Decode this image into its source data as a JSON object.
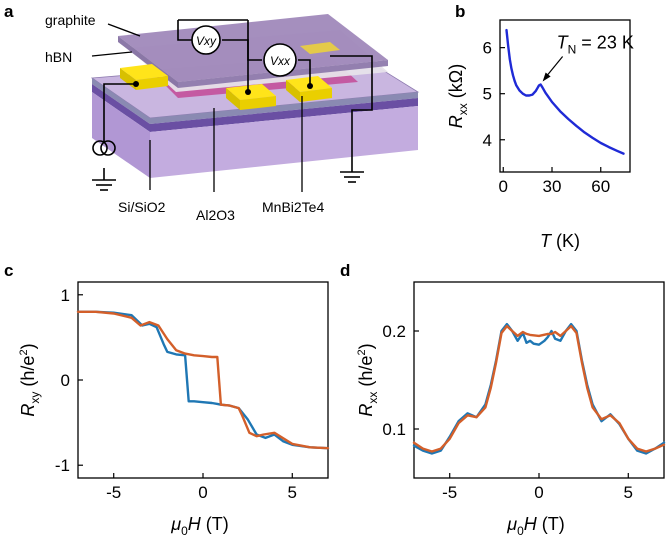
{
  "panels": {
    "a": {
      "label": "a",
      "labels": {
        "graphite": "graphite",
        "hbn": "hBN",
        "vxy": "Vxy",
        "vxx": "Vxx",
        "si_sio2": "Si/SiO2",
        "al2o3": "Al2O3",
        "mnbi2te4": "MnBi2Te4"
      },
      "colors": {
        "graphite": "#9d86b8",
        "hbn": "#e7e3ea",
        "sample": "#c45aa2",
        "contacts": "#ffe41a",
        "al2o3": "#8a8ab2",
        "sio2": "#6a4fa3",
        "substrate": "#b197d4"
      }
    },
    "b": {
      "label": "b"
    },
    "c": {
      "label": "c"
    },
    "d": {
      "label": "d"
    }
  },
  "chart_data": [
    {
      "id": "b",
      "type": "line",
      "xlabel_var": "T",
      "xlabel_unit": "(K)",
      "ylabel_var": "R",
      "ylabel_sub": "xx",
      "ylabel_unit": "(kΩ)",
      "xlim": [
        -2,
        78
      ],
      "ylim": [
        3.3,
        6.6
      ],
      "xticks": [
        0,
        30,
        60
      ],
      "yticks": [
        4,
        5,
        6
      ],
      "annotation": {
        "var": "T",
        "sub": "N",
        "rest": " = 23 K",
        "x": 23,
        "y": 5.2
      },
      "series": [
        {
          "name": "Rxx",
          "color": "#1f2ad6",
          "x": [
            2,
            3,
            4,
            5,
            6,
            7,
            8,
            10,
            12,
            14,
            16,
            18,
            20,
            21,
            22,
            23,
            24,
            26,
            28,
            30,
            35,
            40,
            45,
            50,
            55,
            60,
            65,
            70,
            74
          ],
          "y": [
            6.38,
            6.05,
            5.75,
            5.55,
            5.4,
            5.28,
            5.18,
            5.07,
            5.0,
            4.96,
            4.96,
            4.98,
            5.06,
            5.12,
            5.18,
            5.2,
            5.14,
            5.02,
            4.92,
            4.82,
            4.62,
            4.45,
            4.3,
            4.16,
            4.04,
            3.93,
            3.84,
            3.76,
            3.7
          ]
        }
      ]
    },
    {
      "id": "c",
      "type": "line",
      "xlabel_var": "μ",
      "xlabel_sub": "0",
      "xlabel_rest": "H",
      "xlabel_unit": "(T)",
      "ylabel_var": "R",
      "ylabel_sub": "xy",
      "ylabel_unit": "(h/e",
      "ylabel_sup": "2",
      "ylabel_close": ")",
      "xlim": [
        -7,
        7
      ],
      "ylim": [
        -1.15,
        1.15
      ],
      "xticks": [
        -5,
        0,
        5
      ],
      "yticks": [
        -1,
        0,
        1
      ],
      "series": [
        {
          "name": "sweep down",
          "color": "#1f77b4",
          "x": [
            -7,
            -6,
            -5,
            -4,
            -3.4,
            -3,
            -2.6,
            -2.2,
            -2,
            -1.5,
            -1.0,
            -0.8,
            -0.5,
            0,
            0.5,
            0.8,
            1.0,
            1.5,
            2,
            2.5,
            3,
            3.5,
            4,
            4.5,
            5,
            6,
            7
          ],
          "y": [
            0.8,
            0.8,
            0.79,
            0.76,
            0.64,
            0.66,
            0.62,
            0.42,
            0.33,
            0.3,
            0.29,
            -0.25,
            -0.25,
            -0.26,
            -0.27,
            -0.28,
            -0.29,
            -0.3,
            -0.33,
            -0.46,
            -0.64,
            -0.68,
            -0.64,
            -0.72,
            -0.76,
            -0.79,
            -0.8
          ]
        },
        {
          "name": "sweep up",
          "color": "#d35f2a",
          "x": [
            -7,
            -6,
            -5,
            -4,
            -3.5,
            -3,
            -2.5,
            -2,
            -1.5,
            -1.0,
            -0.5,
            0,
            0.5,
            0.8,
            1.0,
            1.5,
            2,
            2.2,
            2.6,
            3,
            3.4,
            4,
            5,
            6,
            7
          ],
          "y": [
            0.8,
            0.8,
            0.78,
            0.73,
            0.64,
            0.68,
            0.64,
            0.48,
            0.35,
            0.31,
            0.29,
            0.28,
            0.27,
            0.27,
            -0.29,
            -0.3,
            -0.33,
            -0.42,
            -0.62,
            -0.66,
            -0.64,
            -0.62,
            -0.75,
            -0.79,
            -0.8
          ]
        }
      ]
    },
    {
      "id": "d",
      "type": "line",
      "xlabel_var": "μ",
      "xlabel_sub": "0",
      "xlabel_rest": "H",
      "xlabel_unit": "(T)",
      "ylabel_var": "R",
      "ylabel_sub": "xx",
      "ylabel_unit": "(h/e",
      "ylabel_sup": "2",
      "ylabel_close": ")",
      "xlim": [
        -7,
        7
      ],
      "ylim": [
        0.05,
        0.25
      ],
      "xticks": [
        -5,
        0,
        5
      ],
      "yticks": [
        0.1,
        0.2
      ],
      "series": [
        {
          "name": "sweep down",
          "color": "#1f77b4",
          "x": [
            -7,
            -6.5,
            -6,
            -5.5,
            -5,
            -4.5,
            -4,
            -3.5,
            -3,
            -2.7,
            -2.4,
            -2.1,
            -1.8,
            -1.5,
            -1.2,
            -0.9,
            -0.7,
            -0.5,
            -0.3,
            0,
            0.3,
            0.5,
            0.7,
            0.9,
            1.2,
            1.5,
            1.8,
            2.1,
            2.4,
            2.7,
            3,
            3.5,
            4,
            4.5,
            5,
            5.5,
            6,
            6.5,
            7
          ],
          "y": [
            0.083,
            0.078,
            0.075,
            0.078,
            0.092,
            0.108,
            0.116,
            0.112,
            0.125,
            0.145,
            0.17,
            0.2,
            0.207,
            0.2,
            0.19,
            0.198,
            0.188,
            0.19,
            0.187,
            0.186,
            0.19,
            0.194,
            0.2,
            0.192,
            0.19,
            0.2,
            0.207,
            0.2,
            0.17,
            0.145,
            0.125,
            0.108,
            0.115,
            0.105,
            0.09,
            0.078,
            0.075,
            0.08,
            0.086
          ]
        },
        {
          "name": "sweep up",
          "color": "#d35f2a",
          "x": [
            -7,
            -6.5,
            -6,
            -5.5,
            -5,
            -4.5,
            -4,
            -3.5,
            -3,
            -2.7,
            -2.4,
            -2.1,
            -1.8,
            -1.5,
            -1.2,
            -0.9,
            -0.7,
            -0.5,
            0,
            0.5,
            0.7,
            0.9,
            1.2,
            1.5,
            1.8,
            2.1,
            2.4,
            2.7,
            3,
            3.5,
            4,
            4.5,
            5,
            5.5,
            6,
            6.5,
            7
          ],
          "y": [
            0.086,
            0.08,
            0.077,
            0.08,
            0.09,
            0.106,
            0.114,
            0.112,
            0.122,
            0.142,
            0.168,
            0.198,
            0.205,
            0.2,
            0.195,
            0.199,
            0.197,
            0.196,
            0.195,
            0.197,
            0.197,
            0.199,
            0.195,
            0.2,
            0.205,
            0.198,
            0.168,
            0.142,
            0.122,
            0.11,
            0.114,
            0.106,
            0.09,
            0.08,
            0.077,
            0.08,
            0.084
          ]
        }
      ]
    }
  ]
}
